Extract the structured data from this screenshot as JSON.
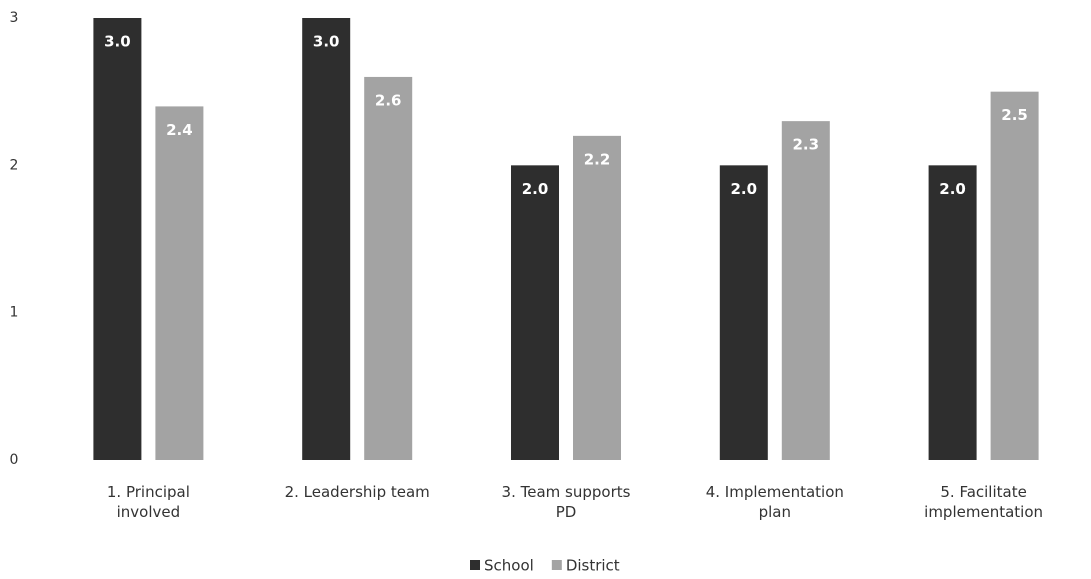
{
  "chart_data": {
    "type": "bar",
    "categories": [
      "1. Principal involved",
      "2. Leadership team",
      "3. Team supports PD",
      "4. Implementation plan",
      "5. Facilitate implementation"
    ],
    "series": [
      {
        "name": "School",
        "color": "#2e2e2e",
        "values": [
          3.0,
          3.0,
          2.0,
          2.0,
          2.0
        ],
        "value_labels": [
          "3.0",
          "3.0",
          "2.0",
          "2.0",
          "2.0"
        ]
      },
      {
        "name": "District",
        "color": "#a3a3a3",
        "values": [
          2.4,
          2.6,
          2.2,
          2.3,
          2.5
        ],
        "value_labels": [
          "2.4",
          "2.6",
          "2.2",
          "2.3",
          "2.5"
        ]
      }
    ],
    "ylim": [
      0,
      3
    ],
    "yticks": [
      0,
      1,
      2,
      3
    ],
    "grid": false,
    "legend": "bottom"
  }
}
